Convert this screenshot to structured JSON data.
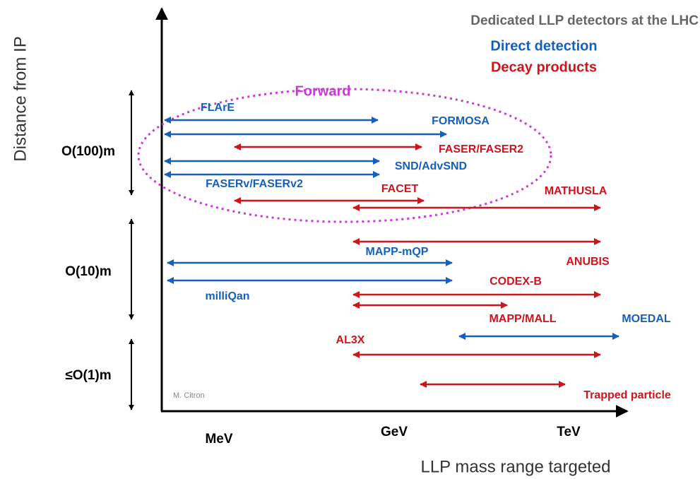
{
  "title": "Dedicated LLP detectors at the LHC",
  "legend": {
    "direct": "Direct detection",
    "decay": "Decay products"
  },
  "region": "Forward",
  "axes": {
    "y_label": "Distance from IP",
    "x_label": "LLP mass range targeted",
    "x_ticks": [
      "MeV",
      "GeV",
      "TeV"
    ],
    "y_ticks": [
      "O(100)m",
      "O(10)m",
      "≤O(1)m"
    ]
  },
  "detectors": [
    {
      "label": "FLArE"
    },
    {
      "label": "FORMOSA"
    },
    {
      "label": "FASER/FASER2"
    },
    {
      "label": "SND/AdvSND"
    },
    {
      "label": "FASERv/FASERv2"
    },
    {
      "label": "FACET"
    },
    {
      "label": "MATHUSLA"
    },
    {
      "label": "ANUBIS"
    },
    {
      "label": "MAPP-mQP"
    },
    {
      "label": "milliQan"
    },
    {
      "label": "CODEX-B"
    },
    {
      "label": "MAPP/MALL"
    },
    {
      "label": "MOEDAL"
    },
    {
      "label": "AL3X"
    },
    {
      "label": "Trapped particle"
    }
  ],
  "credit": "M. Citron"
}
